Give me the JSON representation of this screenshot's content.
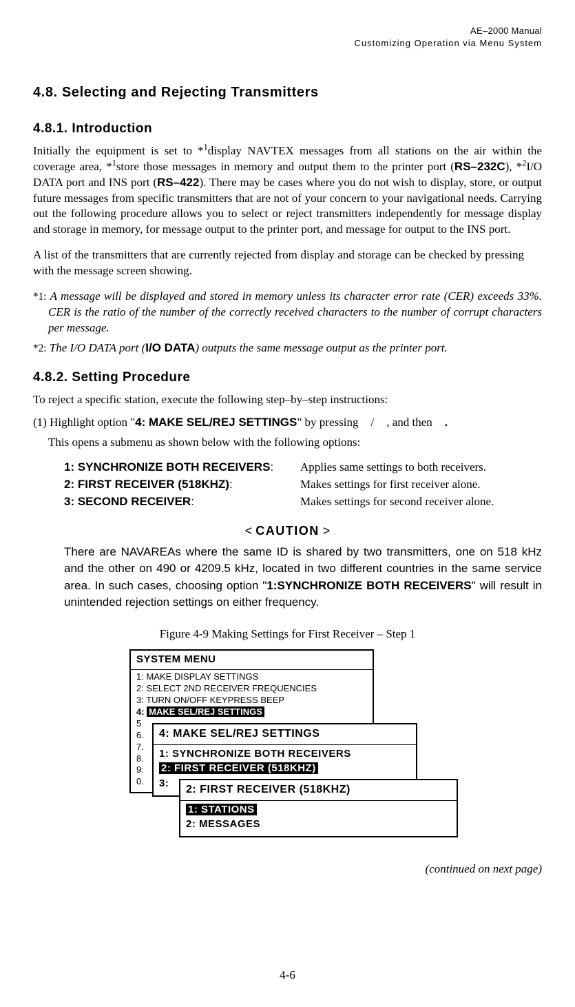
{
  "header": {
    "line1": "AE–2000 Manual",
    "line2": "Customizing Operation via Menu System"
  },
  "section": {
    "num_title": "4.8.    Selecting and Rejecting Transmitters",
    "intro_title": "4.8.1.  Introduction",
    "intro_p1_a": "Initially the equipment is set to *",
    "intro_p1_sup1": "1",
    "intro_p1_b": "display NAVTEX messages from all stations on the air within the coverage area, *",
    "intro_p1_sup2": "1",
    "intro_p1_c": "store those messages in memory and output them to the printer port (",
    "intro_p1_rs232": "RS–232C",
    "intro_p1_d": "), *",
    "intro_p1_sup3": "2",
    "intro_p1_e": "I/O DATA port and INS port (",
    "intro_p1_rs422": "RS–422",
    "intro_p1_f": "). There may be cases where you do not wish to display, store, or output future messages from specific transmitters that are not of your concern to your navigational needs. Carrying out the following procedure allows you to select or reject transmitters independently for message display and storage in memory, for message output to the printer port, and message for output to the INS port.",
    "intro_p2_a": "A list of the transmitters that are currently rejected from display and storage can be checked by pressing",
    "intro_p2_b": "with the message screen showing.",
    "note1_label": "*1:",
    "note1_text": "A message will be displayed and stored in memory unless its character error rate (CER) exceeds 33%. CER is the ratio of the number of the correctly received characters to the number of corrupt characters per message.",
    "note2_label": "*2:",
    "note2_a": "The I/O DATA port (",
    "note2_bold": "I/O DATA",
    "note2_b": ") outputs the same message output as the printer port.",
    "proc_title": "4.8.2.  Setting Procedure",
    "proc_intro": "To reject a specific station, execute the following step–by–step instructions:",
    "step1_a": "(1) Highlight option \"",
    "step1_bold": "4: MAKE SEL/REJ SETTINGS",
    "step1_b": "\" by pressing",
    "step1_slash": "/",
    "step1_c": ", and then",
    "step1_sub": "This opens a submenu as shown below with the following options:",
    "opts": [
      {
        "left": "1: SYNCHRONIZE BOTH RECEIVERS",
        "right": "Applies same settings to both receivers."
      },
      {
        "left": "2: FIRST RECEIVER (518KHZ)",
        "right": "Makes settings for first receiver alone."
      },
      {
        "left": "3: SECOND RECEIVER",
        "right": "Makes settings for second receiver alone."
      }
    ],
    "caution_title_lt": "< ",
    "caution_title_word": "CAUTION",
    "caution_title_gt": " >",
    "caution_body_a": "There are NAVAREAs where the same ID is shared by two transmitters, one on 518 kHz and the other on 490 or 4209.5 kHz, located in two different countries in the same service area. In such cases, choosing option \"",
    "caution_body_bold": "1:SYNCHRONIZE BOTH RECEIVERS",
    "caution_body_b": "\" will result in unintended rejection settings on either frequency.",
    "fig_caption": "Figure 4-9   Making Settings for First Receiver – Step 1",
    "continued": "(continued on next page)",
    "pagenum": "4-6"
  },
  "menus": {
    "panel1": {
      "title": "SYSTEM MENU",
      "lines": [
        "1:   MAKE DISPLAY SETTINGS",
        "2:   SELECT 2ND RECEIVER FREQUENCIES",
        "3:   TURN ON/OFF KEYPRESS BEEP"
      ],
      "highlight_prefix": "4:   ",
      "highlight_text": "MAKE SEL/REJ SETTINGS",
      "tail": [
        "5",
        "6.",
        "7.",
        "8.",
        "9:",
        "0."
      ]
    },
    "panel2": {
      "title": "4: MAKE SEL/REJ SETTINGS",
      "lines_pre": "1: SYNCHRONIZE BOTH RECEIVERS",
      "highlight": "2: FIRST RECEIVER (518KHZ)",
      "lines_post": "3:"
    },
    "panel3": {
      "title": "2: FIRST RECEIVER (518KHZ)",
      "highlight": "1: STATIONS",
      "line2": "2: MESSAGES"
    }
  },
  "colors": {
    "text": "#000000",
    "bg": "#ffffff",
    "highlight_bg": "#000000",
    "highlight_fg": "#ffffff"
  }
}
